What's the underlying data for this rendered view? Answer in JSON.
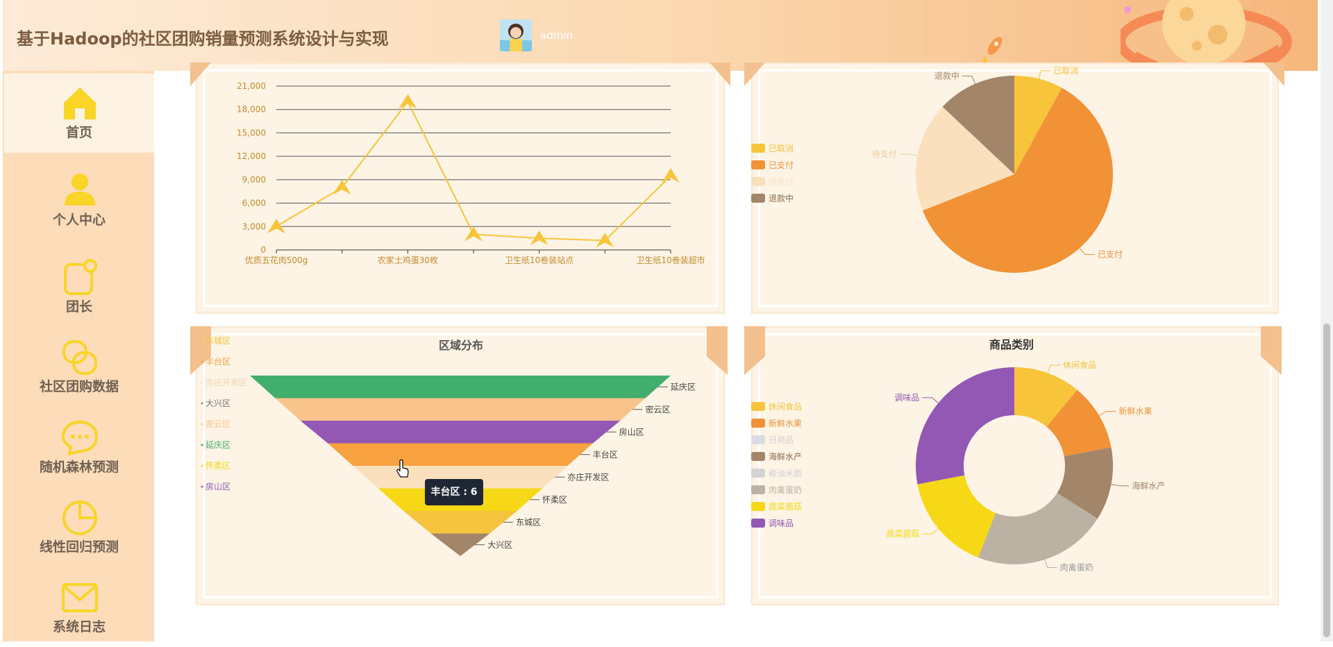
{
  "app": {
    "title": "基于Hadoop的社区团购销量预测系统设计与实现",
    "username": "admin"
  },
  "sidebar": {
    "items": [
      {
        "label": "首页",
        "icon": "home-icon"
      },
      {
        "label": "个人中心",
        "icon": "user-icon"
      },
      {
        "label": "团长",
        "icon": "note-icon"
      },
      {
        "label": "社区团购数据",
        "icon": "link-icon"
      },
      {
        "label": "随机森林预测",
        "icon": "chat-icon"
      },
      {
        "label": "线性回归预测",
        "icon": "pie-icon"
      },
      {
        "label": "系统日志",
        "icon": "mail-icon"
      }
    ]
  },
  "colors": {
    "accent": "#f8c43a",
    "sidebar": "#fcdcb9",
    "panel": "#fef4e6"
  },
  "chart_data": [
    {
      "type": "line",
      "x": [
        "优质五花肉500g",
        "",
        "农家土鸡蛋30枚",
        "",
        "卫生纸10卷装站点",
        "",
        "卫生纸10卷装超市"
      ],
      "values": [
        3000,
        8000,
        19000,
        2000,
        1500,
        1200,
        9500
      ],
      "tick_labels": [
        "0",
        "3,000",
        "6,000",
        "9,000",
        "12,000",
        "15,000",
        "18,000",
        "21,000"
      ],
      "ylim": [
        0,
        21000
      ],
      "grid": true
    },
    {
      "type": "pie",
      "legend": [
        "已取消",
        "已支付",
        "待支付",
        "退款中"
      ],
      "slices": [
        {
          "name": "已取消",
          "value": 8,
          "color": "#f8c43a"
        },
        {
          "name": "已支付",
          "value": 61,
          "color": "#f29237"
        },
        {
          "name": "待支付",
          "value": 18,
          "color": "#fbe0be"
        },
        {
          "name": "退款中",
          "value": 13,
          "color": "#a3856a"
        }
      ],
      "outer_labels": [
        "已取消",
        "已支付",
        "待支付",
        "退款中"
      ]
    },
    {
      "type": "funnel",
      "title": "区域分布",
      "legend": [
        "东城区",
        "丰台区",
        "亦庄开发区",
        "大兴区",
        "密云区",
        "延庆区",
        "怀柔区",
        "房山区"
      ],
      "stages": [
        {
          "name": "延庆区",
          "value": 100,
          "color": "#42ae6e"
        },
        {
          "name": "密云区",
          "value": 88,
          "color": "#f9c48c"
        },
        {
          "name": "房山区",
          "value": 76,
          "color": "#9358b4"
        },
        {
          "name": "丰台区",
          "value": 63,
          "color": "#f7a23e"
        },
        {
          "name": "亦庄开发区",
          "value": 51,
          "color": "#fbe0be"
        },
        {
          "name": "怀柔区",
          "value": 39,
          "color": "#f7d816"
        },
        {
          "name": "东城区",
          "value": 27,
          "color": "#f6c33e"
        },
        {
          "name": "大兴区",
          "value": 14,
          "color": "#a3856a"
        }
      ],
      "tooltip": "丰台区 : 6"
    },
    {
      "type": "pie",
      "title": "商品类别",
      "legend": [
        "休闲食品",
        "新鲜水果",
        "日用品",
        "海鲜水产",
        "粮油米面",
        "肉禽蛋奶",
        "蔬菜菌菇",
        "调味品"
      ],
      "slices": [
        {
          "name": "休闲食品",
          "value": 11,
          "color": "#f8c43a"
        },
        {
          "name": "新鲜水果",
          "value": 11,
          "color": "#f29237"
        },
        {
          "name": "日用品",
          "value": 0,
          "color": "#d9dde2"
        },
        {
          "name": "海鲜水产",
          "value": 12,
          "color": "#a3856a"
        },
        {
          "name": "粮油米面",
          "value": 0,
          "color": "#d3d3d3"
        },
        {
          "name": "肉禽蛋奶",
          "value": 22,
          "color": "#bbb2a4"
        },
        {
          "name": "蔬菜菌菇",
          "value": 16,
          "color": "#f7d816"
        },
        {
          "name": "调味品",
          "value": 28,
          "color": "#9358b4"
        }
      ],
      "outer_labels": [
        "休闲食品",
        "新鲜水果",
        "海鲜水产",
        "肉禽蛋奶",
        "蔬菜菌菇",
        "调味品"
      ]
    }
  ]
}
